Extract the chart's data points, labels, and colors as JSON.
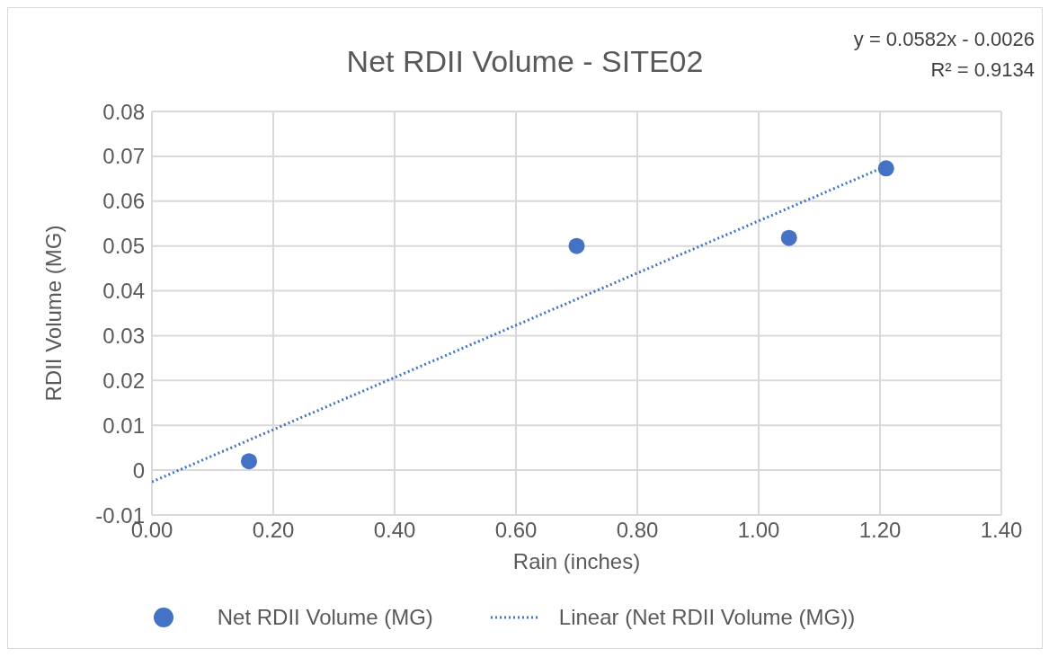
{
  "chart_data": {
    "type": "scatter",
    "title": "Net RDII Volume - SITE02",
    "xlabel": "Rain (inches)",
    "ylabel": "RDII Volume (MG)",
    "annotations": [
      "y = 0.0582x - 0.0026",
      "R² = 0.9134"
    ],
    "series": [
      {
        "name": "Net RDII Volume (MG)",
        "color": "#4472c4",
        "x": [
          0.16,
          0.7,
          1.05,
          1.21
        ],
        "values": [
          0.002,
          0.05,
          0.0518,
          0.0673
        ],
        "marker": "circle"
      },
      {
        "name": "Linear (Net RDII Volume (MG))",
        "type": "line",
        "color": "#4472c4",
        "x": [
          0,
          1.21
        ],
        "values": [
          -0.0026,
          0.0678
        ],
        "line_style": "dotted",
        "marker": "none"
      }
    ],
    "xlim": [
      0,
      1.4
    ],
    "xticks": [
      {
        "value": 0,
        "label": "0.00"
      },
      {
        "value": 0.2,
        "label": "0.20"
      },
      {
        "value": 0.4,
        "label": "0.40"
      },
      {
        "value": 0.6,
        "label": "0.60"
      },
      {
        "value": 0.8,
        "label": "0.80"
      },
      {
        "value": 1,
        "label": "1.00"
      },
      {
        "value": 1.2,
        "label": "1.20"
      },
      {
        "value": 1.4,
        "label": "1.40"
      }
    ],
    "ylim": [
      -0.01,
      0.08
    ],
    "yticks": [
      -0.01,
      0,
      0.01,
      0.02,
      0.03,
      0.04,
      0.05,
      0.06,
      0.07,
      0.08
    ],
    "grid": true,
    "legend": "bottom"
  }
}
